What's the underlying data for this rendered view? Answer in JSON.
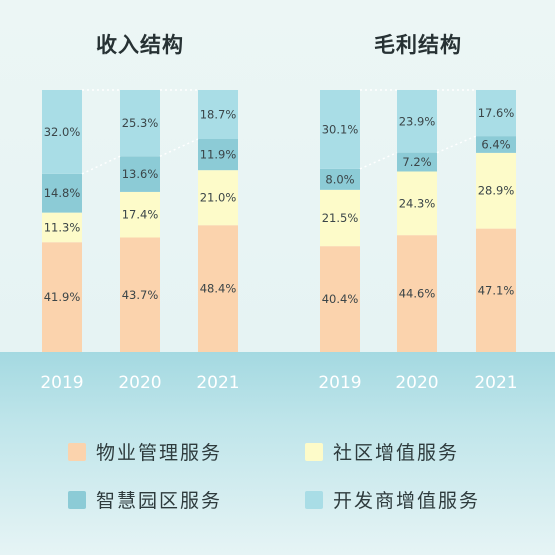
{
  "chart_data": [
    {
      "type": "bar",
      "stacked": true,
      "title": "收入结构",
      "categories": [
        "2019",
        "2020",
        "2021"
      ],
      "ylim": [
        0,
        100
      ],
      "unit": "%",
      "series": [
        {
          "name": "物业管理服务",
          "color": "#fbd3ad",
          "values": [
            41.9,
            43.7,
            48.4
          ]
        },
        {
          "name": "社区增值服务",
          "color": "#fdfbc9",
          "values": [
            11.3,
            17.4,
            21.0
          ]
        },
        {
          "name": "智慧园区服务",
          "color": "#8ccbd6",
          "values": [
            14.8,
            13.6,
            11.9
          ]
        },
        {
          "name": "开发商增值服务",
          "color": "#a9dde6",
          "values": [
            32.0,
            25.3,
            18.7
          ]
        }
      ]
    },
    {
      "type": "bar",
      "stacked": true,
      "title": "毛利结构",
      "categories": [
        "2019",
        "2020",
        "2021"
      ],
      "ylim": [
        0,
        100
      ],
      "unit": "%",
      "series": [
        {
          "name": "物业管理服务",
          "color": "#fbd3ad",
          "values": [
            40.4,
            44.6,
            47.1
          ]
        },
        {
          "name": "社区增值服务",
          "color": "#fdfbc9",
          "values": [
            21.5,
            24.3,
            28.9
          ]
        },
        {
          "name": "智慧园区服务",
          "color": "#8ccbd6",
          "values": [
            8.0,
            7.2,
            6.4
          ]
        },
        {
          "name": "开发商增值服务",
          "color": "#a9dde6",
          "values": [
            30.1,
            23.9,
            17.6
          ]
        }
      ]
    }
  ],
  "legend": [
    {
      "label": "物业管理服务",
      "color": "#fbd3ad"
    },
    {
      "label": "社区增值服务",
      "color": "#fdfbc9"
    },
    {
      "label": "智慧园区服务",
      "color": "#8ccbd6"
    },
    {
      "label": "开发商增值服务",
      "color": "#a9dde6"
    }
  ]
}
